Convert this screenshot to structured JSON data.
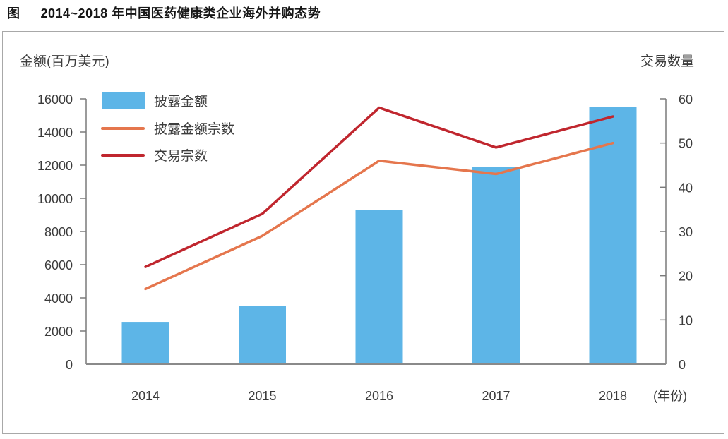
{
  "figure": {
    "title_prefix": "图",
    "title": "2014~2018 年中国医药健康类企业海外并购态势"
  },
  "colors": {
    "bar_blue": "#5db5e7",
    "line_orange": "#e5764d",
    "line_red": "#c0262e",
    "axis_gray": "#7a7a7a",
    "baseline_gray": "#8a8a8a",
    "text_gray": "#3b3b3b",
    "frame_border": "#a8a8a8"
  },
  "chart_data": {
    "type": "bar",
    "subtype": "bar+line combo, dual axis",
    "categories": [
      "2014",
      "2015",
      "2016",
      "2017",
      "2018"
    ],
    "series": [
      {
        "name": "披露金额",
        "type": "bar",
        "axis": "left",
        "color": "#5db5e7",
        "values": [
          2550,
          3500,
          9300,
          11900,
          15500
        ]
      },
      {
        "name": "披露金额宗数",
        "type": "line",
        "axis": "right",
        "color": "#e5764d",
        "values": [
          17,
          29,
          46,
          43,
          50
        ]
      },
      {
        "name": "交易宗数",
        "type": "line",
        "axis": "right",
        "color": "#c0262e",
        "values": [
          22,
          34,
          58,
          49,
          56
        ]
      }
    ],
    "title": "图 2014~2018 年中国医药健康类企业海外并购态势",
    "left_axis": {
      "label": "金额(百万美元)",
      "min": 0,
      "max": 16000,
      "step": 2000
    },
    "right_axis": {
      "label": "交易数量",
      "min": 0,
      "max": 60,
      "step": 10
    },
    "xlabel_unit": "(年份)",
    "grid": false,
    "legend_position": "top-left"
  }
}
